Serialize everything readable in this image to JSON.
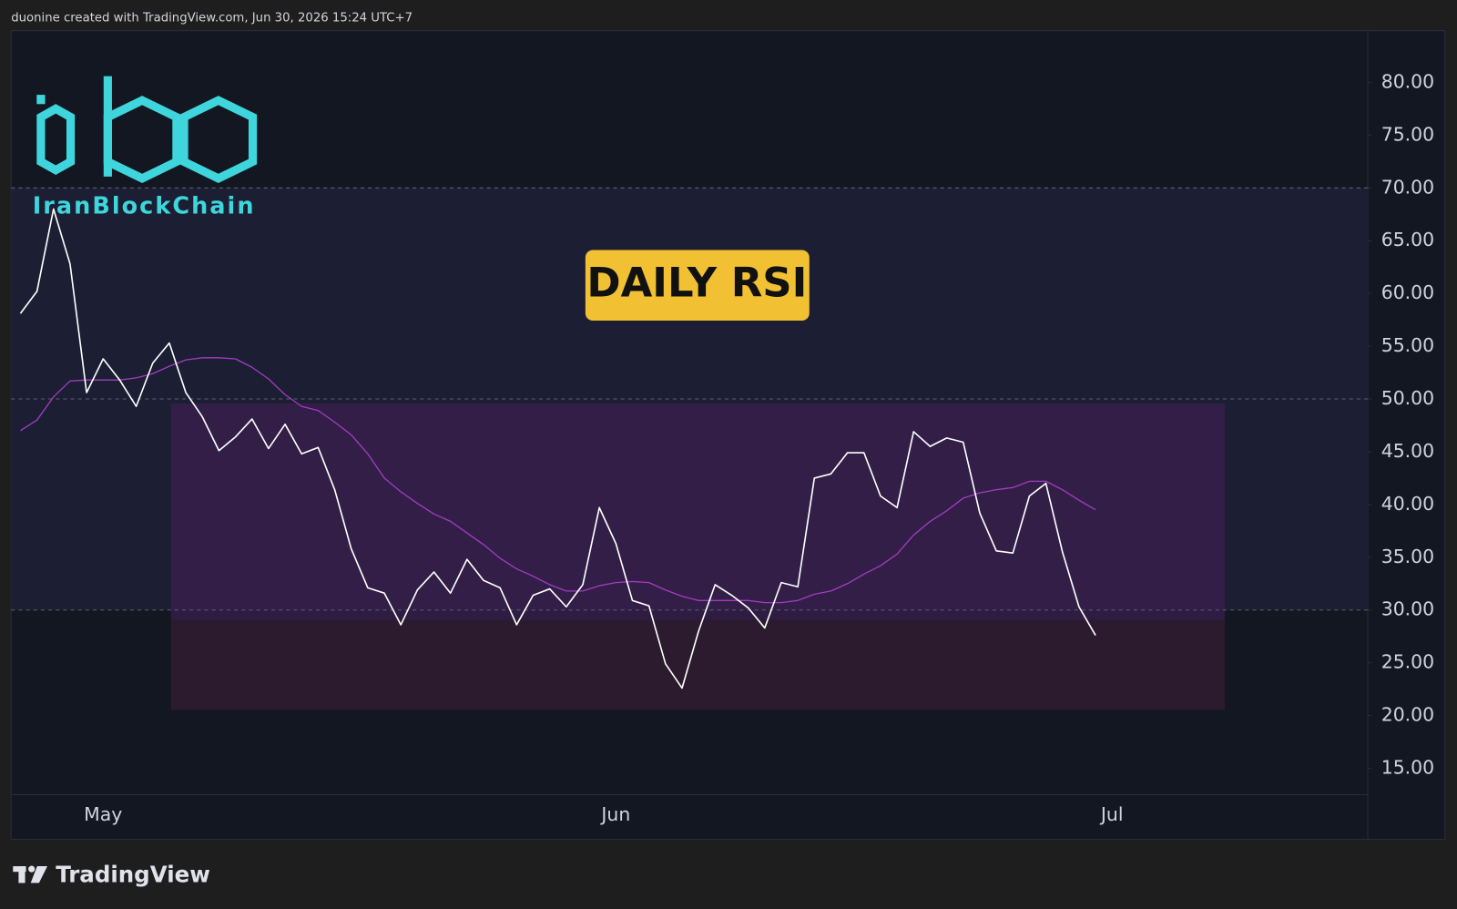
{
  "header": "duonine created with TradingView.com, Jun 30, 2026 15:24 UTC+7",
  "watermark": "IranBlockChain",
  "footer": "TradingView",
  "chart_data": {
    "type": "line",
    "title": "DAILY RSI",
    "categories": [
      null,
      null,
      null,
      null,
      null,
      "May",
      null,
      null,
      null,
      null,
      null,
      null,
      null,
      null,
      null,
      null,
      null,
      null,
      null,
      null,
      null,
      null,
      null,
      null,
      null,
      null,
      null,
      null,
      null,
      null,
      null,
      null,
      null,
      null,
      null,
      null,
      "Jun",
      null,
      null,
      null,
      null,
      null,
      null,
      null,
      null,
      null,
      null,
      null,
      null,
      null,
      null,
      null,
      null,
      null,
      null,
      null,
      null,
      null,
      null,
      null,
      null,
      null,
      null,
      null,
      null,
      null,
      "Jul"
    ],
    "series": [
      {
        "color": "#ffffff",
        "values": [
          58.1,
          60.2,
          68.0,
          62.8,
          50.6,
          53.8,
          51.8,
          49.3,
          53.4,
          55.3,
          50.6,
          48.3,
          45.1,
          46.4,
          48.1,
          45.3,
          47.6,
          44.8,
          45.4,
          41.4,
          35.8,
          32.1,
          31.6,
          28.6,
          31.9,
          33.6,
          31.6,
          34.8,
          32.8,
          32.1,
          28.6,
          31.4,
          32.0,
          30.3,
          32.4,
          39.7,
          36.3,
          30.9,
          30.4,
          24.9,
          22.6,
          28.0,
          32.4,
          31.4,
          30.2,
          28.3,
          32.6,
          32.2,
          42.5,
          42.9,
          44.9,
          44.9,
          40.8,
          39.7,
          46.9,
          45.5,
          46.3,
          45.9,
          39.2,
          35.6,
          35.4,
          40.8,
          42.0,
          35.5,
          30.3,
          27.6,
          null
        ]
      },
      {
        "color": "#a23cc2",
        "values": [
          47.0,
          48.0,
          50.2,
          51.7,
          51.8,
          51.8,
          51.8,
          52.0,
          52.4,
          53.1,
          53.7,
          53.9,
          53.9,
          53.8,
          53.0,
          51.9,
          50.4,
          49.3,
          48.9,
          47.8,
          46.6,
          44.8,
          42.5,
          41.2,
          40.1,
          39.1,
          38.4,
          37.3,
          36.2,
          34.9,
          33.9,
          33.2,
          32.4,
          31.8,
          31.8,
          32.3,
          32.6,
          32.7,
          32.6,
          31.9,
          31.3,
          30.9,
          30.9,
          30.9,
          30.9,
          30.7,
          30.7,
          30.9,
          31.5,
          31.8,
          32.5,
          33.4,
          34.2,
          35.3,
          37.1,
          38.4,
          39.4,
          40.6,
          41.1,
          41.4,
          41.6,
          42.2,
          42.2,
          41.4,
          40.4,
          39.5,
          null
        ]
      }
    ],
    "levels": [
      70,
      50,
      30
    ],
    "ylim": [
      12.5,
      84.9
    ],
    "yticks": [
      {
        "value": 15,
        "label": "15.00"
      },
      {
        "value": 20,
        "label": "20.00"
      },
      {
        "value": 25,
        "label": "25.00"
      },
      {
        "value": 30,
        "label": "30.00"
      },
      {
        "value": 35,
        "label": "35.00"
      },
      {
        "value": 40,
        "label": "40.00"
      },
      {
        "value": 45,
        "label": "45.00"
      },
      {
        "value": 50,
        "label": "50.00"
      },
      {
        "value": 55,
        "label": "55.00"
      },
      {
        "value": 60,
        "label": "60.00"
      },
      {
        "value": 65,
        "label": "65.00"
      },
      {
        "value": 70,
        "label": "70.00"
      },
      {
        "value": 75,
        "label": "75.00"
      },
      {
        "value": 80,
        "label": "80.00"
      }
    ],
    "grid": false
  }
}
